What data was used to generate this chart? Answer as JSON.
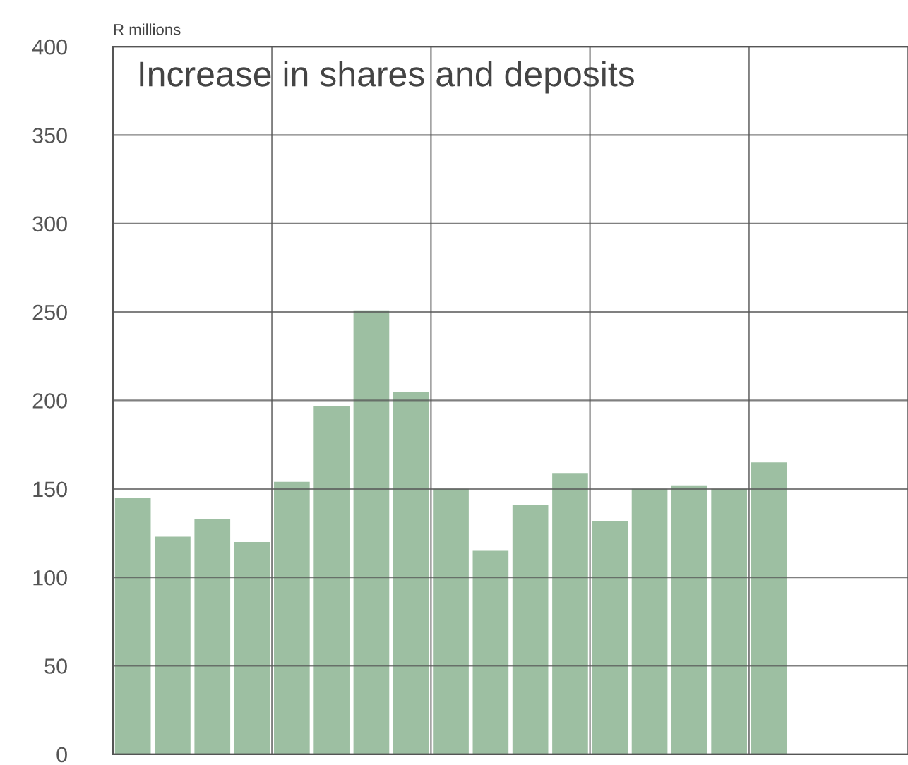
{
  "chart_data": {
    "type": "bar",
    "title": "Increase in shares and deposits",
    "ylabel": "R millions",
    "categories": [
      null,
      null,
      null,
      null,
      null,
      null,
      null,
      null,
      null,
      null,
      null,
      null,
      null,
      null,
      null,
      null,
      null,
      null,
      null,
      null
    ],
    "values": [
      145,
      123,
      133,
      120,
      154,
      197,
      251,
      205,
      150,
      115,
      141,
      159,
      132,
      150,
      152,
      150,
      165,
      null,
      null,
      null
    ],
    "color": "#9dbfa2",
    "ylim": [
      0,
      400
    ],
    "yticks": [
      0,
      50,
      100,
      150,
      200,
      250,
      300,
      350,
      400
    ],
    "grid": true,
    "tick_labels": "y"
  }
}
